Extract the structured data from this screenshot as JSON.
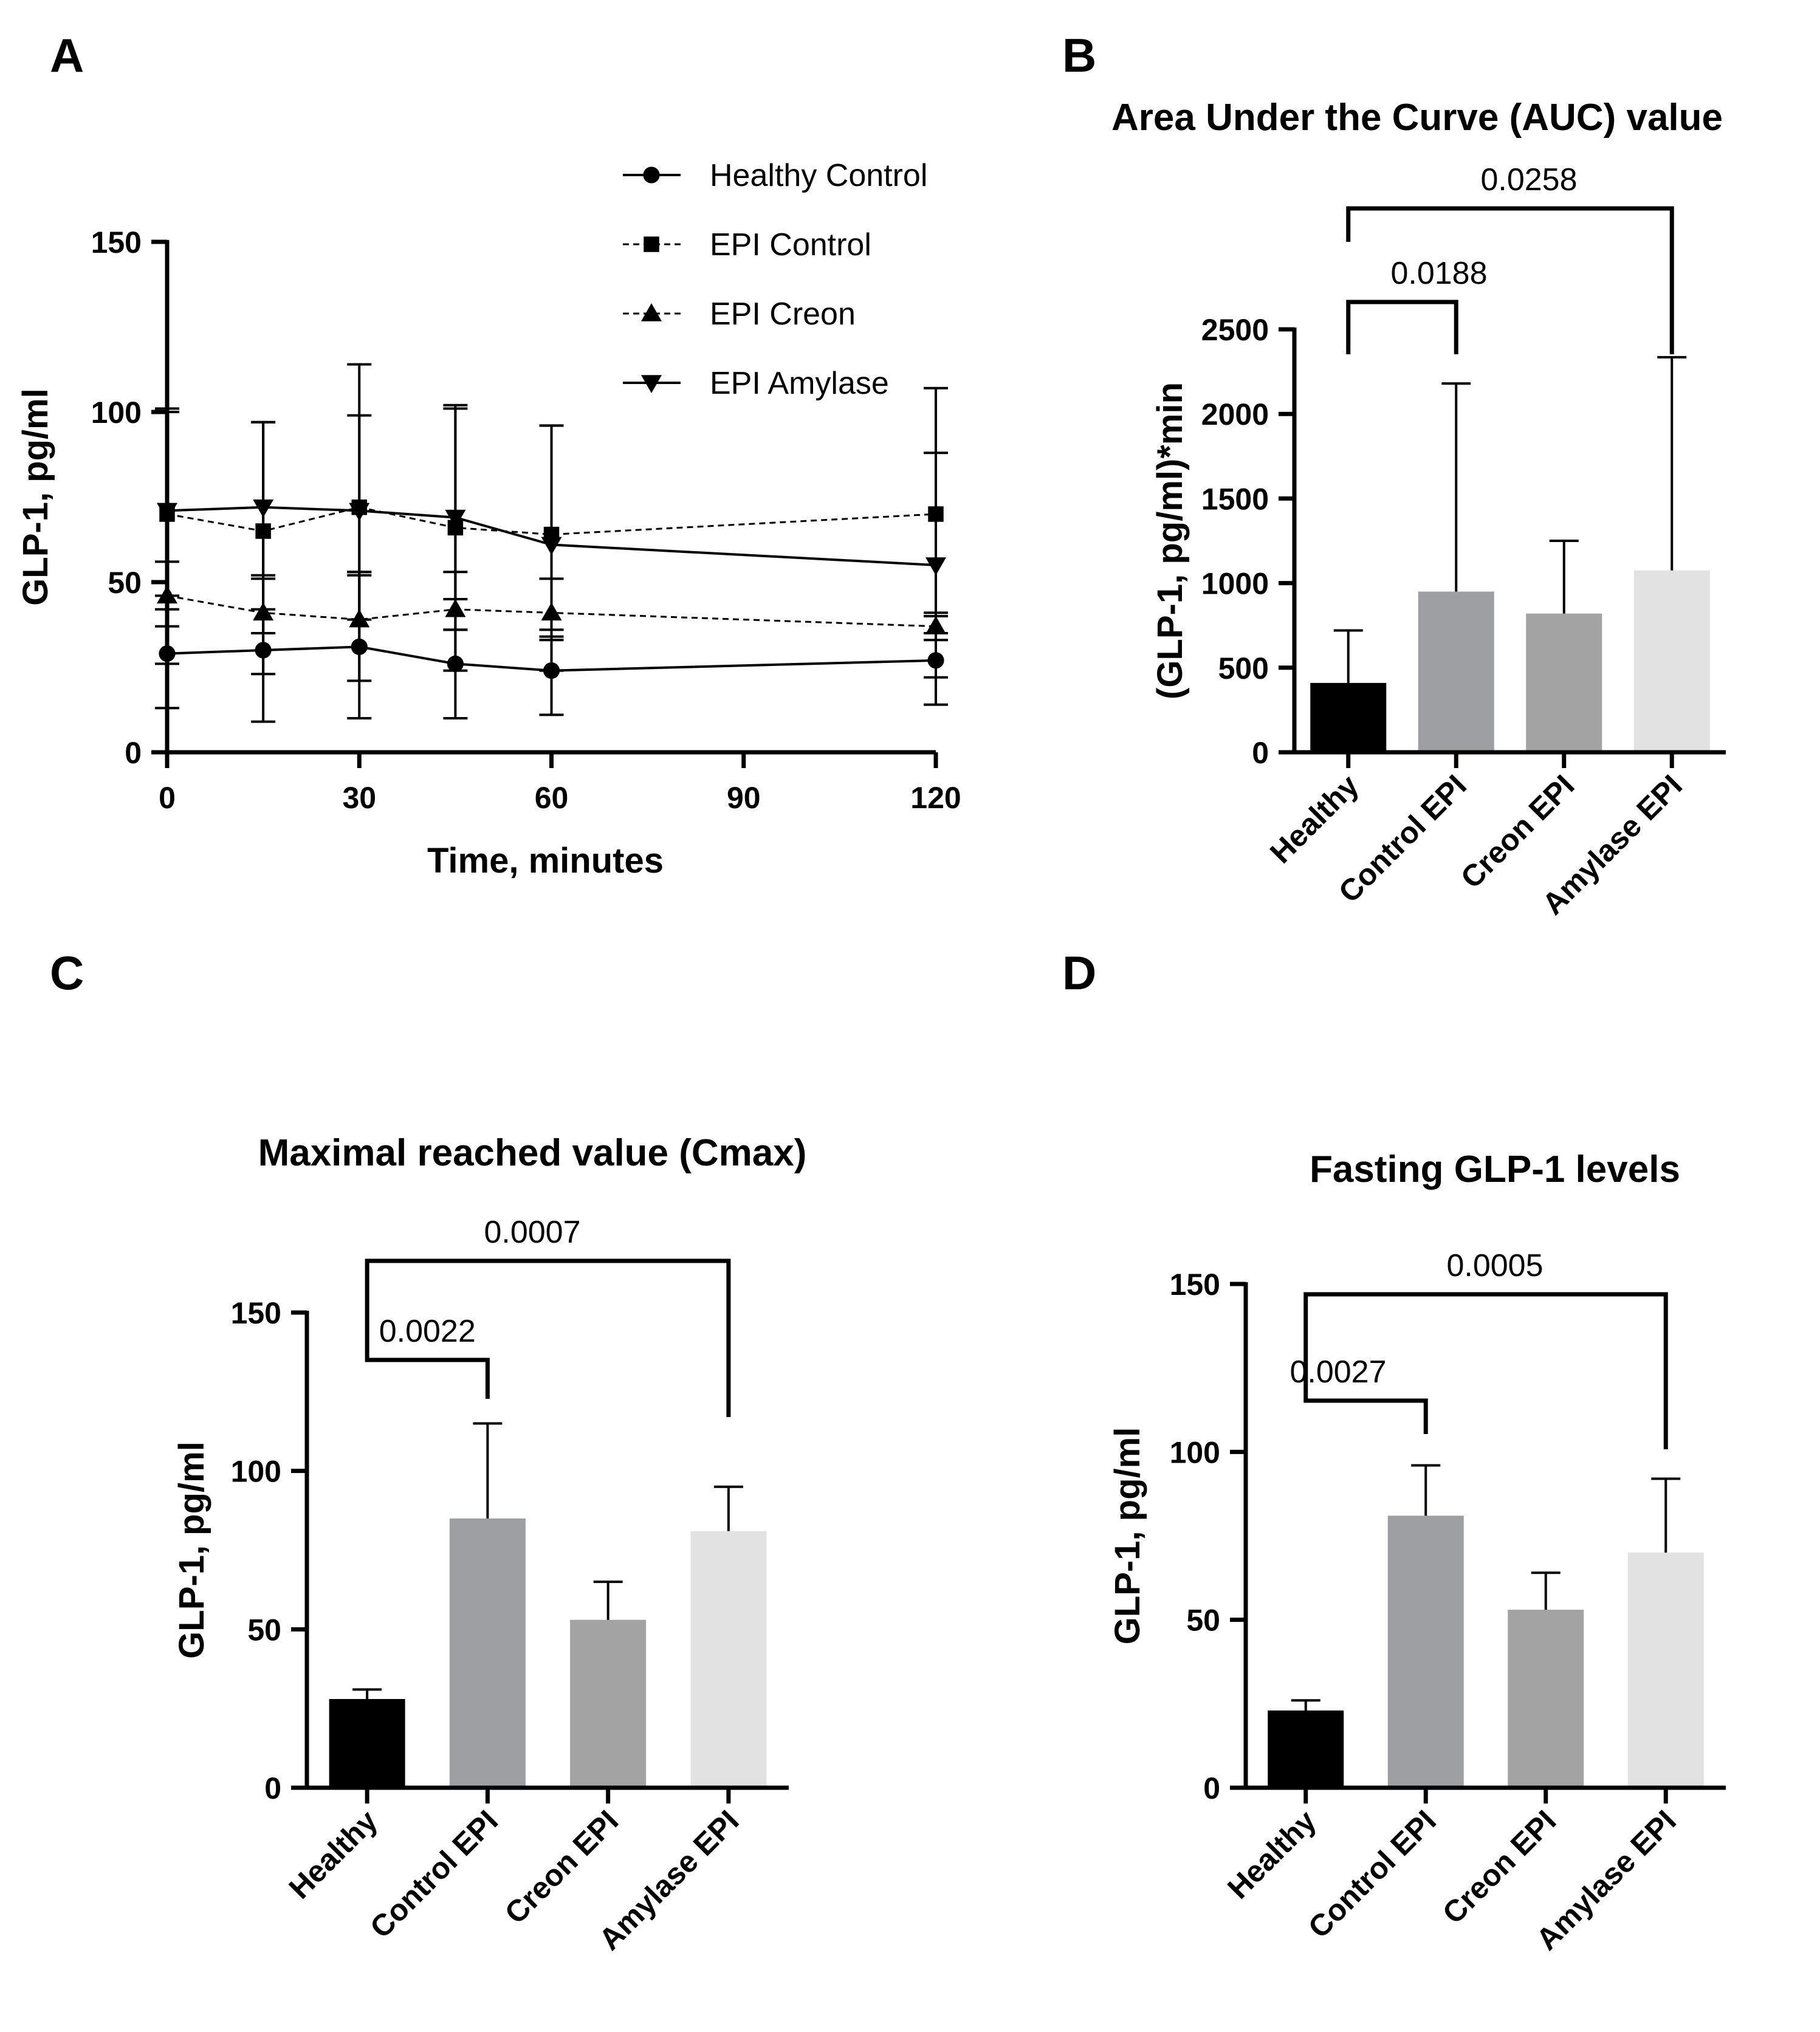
{
  "panels": {
    "A": {
      "letter": "A"
    },
    "B": {
      "letter": "B"
    },
    "C": {
      "letter": "C"
    },
    "D": {
      "letter": "D"
    }
  },
  "chart_data": [
    {
      "panel": "A",
      "type": "line",
      "title": "",
      "xlabel": "Time, minutes",
      "ylabel": "GLP-1, pg/ml",
      "xlim": [
        0,
        120
      ],
      "ylim": [
        0,
        150
      ],
      "xticks": [
        0,
        30,
        60,
        90,
        120
      ],
      "yticks": [
        0,
        50,
        100,
        150
      ],
      "legend_position": "top-right",
      "x": [
        0,
        15,
        30,
        45,
        60,
        120
      ],
      "series": [
        {
          "name": "Healthy Control",
          "marker": "circle",
          "dash": "solid",
          "values": [
            29,
            30,
            31,
            26,
            24,
            27
          ],
          "err_up": [
            8,
            12,
            21,
            10,
            9,
            6
          ],
          "err_down": [
            16,
            21,
            21,
            16,
            13,
            13
          ]
        },
        {
          "name": "EPI Control",
          "marker": "square",
          "dash": "dashed",
          "values": [
            70,
            65,
            72,
            66,
            64,
            70
          ],
          "err_up": [
            30,
            32,
            42,
            35,
            32,
            37
          ],
          "err_down": [
            28,
            30,
            33,
            30,
            30,
            30
          ]
        },
        {
          "name": "EPI Creon",
          "marker": "triangle-up",
          "dash": "dashed",
          "values": [
            46,
            41,
            39,
            42,
            41,
            37
          ],
          "err_up": [
            10,
            10,
            14,
            11,
            10,
            4
          ],
          "err_down": [
            20,
            18,
            18,
            18,
            17,
            15
          ]
        },
        {
          "name": "EPI Amylase",
          "marker": "triangle-down",
          "dash": "solid",
          "values": [
            71,
            72,
            71,
            69,
            61,
            55
          ],
          "err_up": [
            30,
            25,
            28,
            33,
            35,
            33
          ],
          "err_down": [
            25,
            20,
            18,
            24,
            25,
            20
          ]
        }
      ]
    },
    {
      "panel": "B",
      "type": "bar",
      "title": "Area Under the Curve (AUC) value",
      "xlabel": "",
      "ylabel": "(GLP-1, pg/ml)*min",
      "ylim": [
        0,
        2500
      ],
      "yticks": [
        0,
        500,
        1000,
        1500,
        2000,
        2500
      ],
      "categories": [
        "Healthy",
        "Control EPI",
        "Creon EPI",
        "Amylase EPI"
      ],
      "values": [
        410,
        950,
        820,
        1075
      ],
      "errors": [
        310,
        1230,
        430,
        1260
      ],
      "colors": [
        "#000000",
        "#9d9fa2",
        "#a3a3a3",
        "#e2e2e2"
      ],
      "comparisons": [
        {
          "from": 0,
          "to": 1,
          "p": "0.0188"
        },
        {
          "from": 0,
          "to": 3,
          "p": "0.0258"
        }
      ]
    },
    {
      "panel": "C",
      "type": "bar",
      "title": "Maximal reached value (Cmax)",
      "xlabel": "",
      "ylabel": "GLP-1, pg/ml",
      "ylim": [
        0,
        150
      ],
      "yticks": [
        0,
        50,
        100,
        150
      ],
      "categories": [
        "Healthy",
        "Control EPI",
        "Creon EPI",
        "Amylase EPI"
      ],
      "values": [
        28,
        85,
        53,
        81
      ],
      "errors": [
        3,
        30,
        12,
        14
      ],
      "colors": [
        "#000000",
        "#9d9fa2",
        "#a3a3a3",
        "#e2e2e2"
      ],
      "comparisons": [
        {
          "from": 0,
          "to": 1,
          "p": "0.0022"
        },
        {
          "from": 0,
          "to": 3,
          "p": "0.0007"
        }
      ]
    },
    {
      "panel": "D",
      "type": "bar",
      "title": "Fasting GLP-1  levels",
      "xlabel": "",
      "ylabel": "GLP-1, pg/ml",
      "ylim": [
        0,
        150
      ],
      "yticks": [
        0,
        50,
        100,
        150
      ],
      "categories": [
        "Healthy",
        "Control EPI",
        "Creon EPI",
        "Amylase EPI"
      ],
      "values": [
        23,
        81,
        53,
        70
      ],
      "errors": [
        3,
        15,
        11,
        22
      ],
      "colors": [
        "#000000",
        "#9d9fa2",
        "#a3a3a3",
        "#e2e2e2"
      ],
      "comparisons": [
        {
          "from": 0,
          "to": 1,
          "p": "0.0027"
        },
        {
          "from": 0,
          "to": 3,
          "p": "0.0005"
        }
      ]
    }
  ]
}
